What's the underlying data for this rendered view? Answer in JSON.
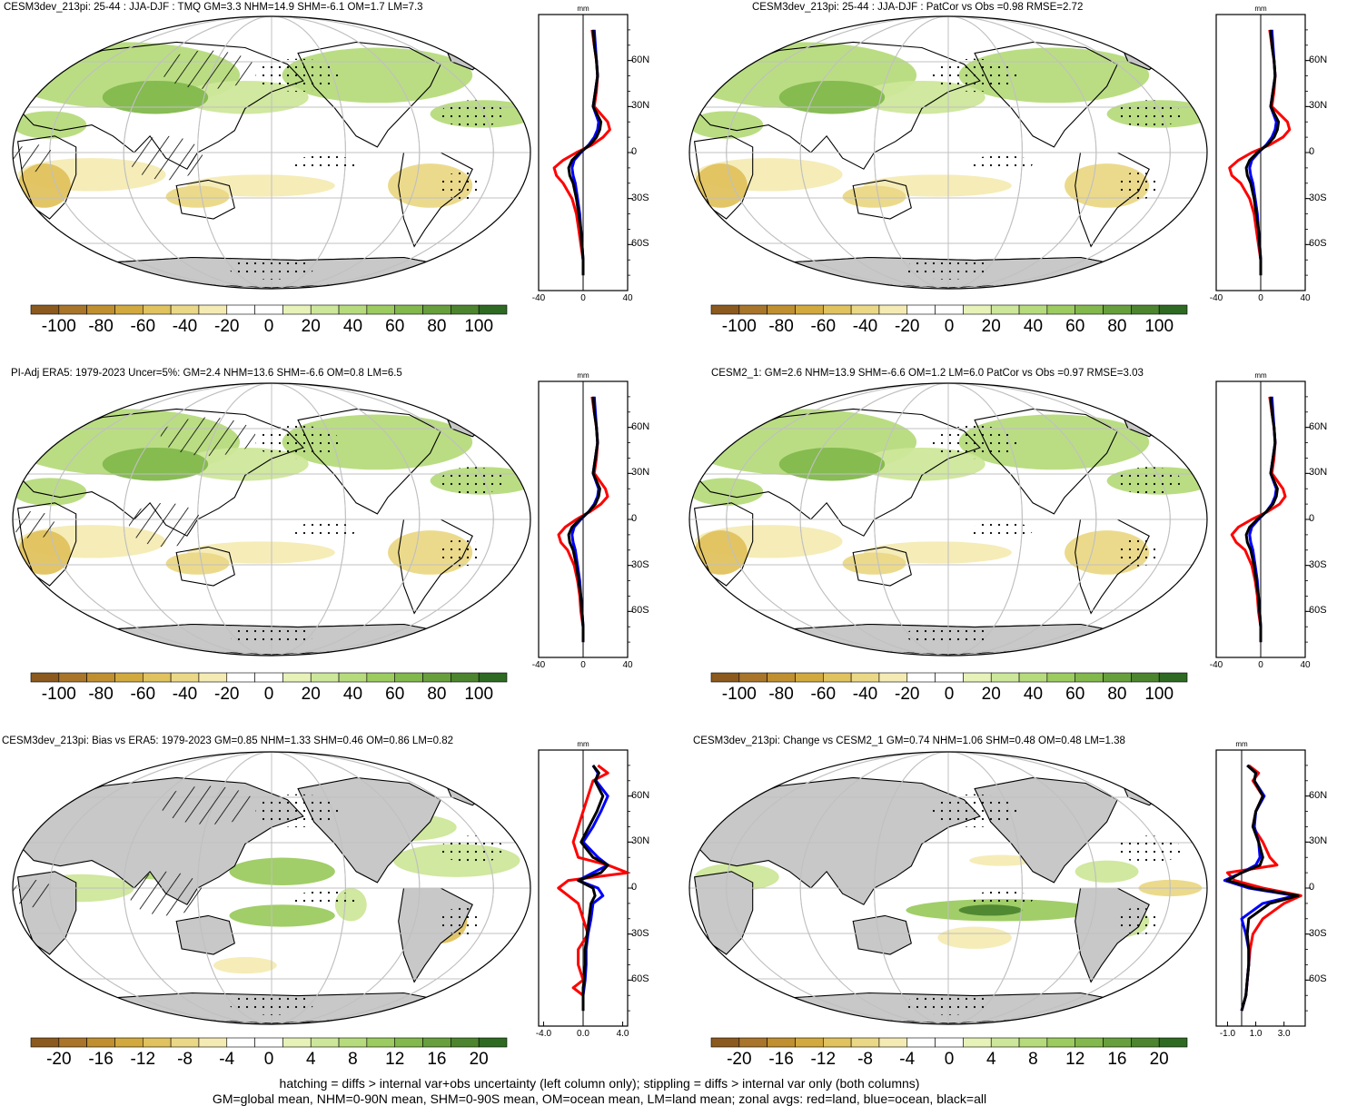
{
  "colors": {
    "land": "#c8c8c8",
    "ocean_bg": "#ffffff",
    "zonal_land": "#ff0000",
    "zonal_ocean": "#0000ff",
    "zonal_all": "#000000",
    "colorbar": [
      "#8c5a1e",
      "#a8752a",
      "#bf8f30",
      "#d2a93e",
      "#e0c25e",
      "#ebd886",
      "#f4ebb4",
      "#ffffff",
      "#ffffff",
      "#e6f2b8",
      "#cde79a",
      "#b6db7c",
      "#9ccb60",
      "#82b84c",
      "#679f3c",
      "#4c852e",
      "#2e6a22"
    ]
  },
  "chart_data": [
    {
      "id": "p1",
      "type": "map",
      "title": "CESM3dev_213pi: 25-44 : JJA-DJF : TMQ GM=3.3 NHM=14.9 SHM=-6.1 OM=1.7 LM=7.3",
      "colorbar_labels": [
        "-100",
        "-80",
        "-60",
        "-40",
        "-20",
        "0",
        "20",
        "40",
        "60",
        "80",
        "100"
      ],
      "zonal": {
        "unit": "mm",
        "lat_ticks": [
          "60N",
          "30N",
          "0",
          "30S",
          "60S"
        ],
        "x_ticks": [
          "-40",
          "0",
          "40"
        ],
        "xlim": [
          -40,
          40
        ],
        "lat": [
          80,
          70,
          60,
          50,
          40,
          30,
          20,
          15,
          10,
          5,
          0,
          -5,
          -10,
          -15,
          -20,
          -30,
          -40,
          -50,
          -60,
          -70,
          -80
        ],
        "land": [
          8,
          10,
          12,
          13,
          12,
          10,
          22,
          24,
          18,
          8,
          -6,
          -18,
          -26,
          -24,
          -18,
          -10,
          -6,
          -4,
          -2,
          0,
          0
        ],
        "ocean": [
          10,
          11,
          12,
          13,
          11,
          9,
          14,
          13,
          10,
          5,
          -2,
          -8,
          -10,
          -9,
          -7,
          -5,
          -3,
          -2,
          -1,
          0,
          0
        ],
        "all": [
          9,
          10,
          12,
          13,
          11,
          9,
          16,
          15,
          12,
          6,
          -3,
          -10,
          -13,
          -12,
          -9,
          -6,
          -4,
          -2,
          -1,
          0,
          0
        ]
      }
    },
    {
      "id": "p2",
      "type": "map",
      "title": "CESM3dev_213pi: 25-44 : JJA-DJF : PatCor vs Obs =0.98 RMSE=2.72",
      "colorbar_labels": [
        "-100",
        "-80",
        "-60",
        "-40",
        "-20",
        "0",
        "20",
        "40",
        "60",
        "80",
        "100"
      ],
      "zonal": {
        "unit": "mm",
        "lat_ticks": [
          "60N",
          "30N",
          "0",
          "30S",
          "60S"
        ],
        "x_ticks": [
          "-40",
          "0",
          "40"
        ],
        "xlim": [
          -40,
          40
        ],
        "lat": [
          80,
          70,
          60,
          50,
          40,
          30,
          20,
          15,
          10,
          5,
          0,
          -5,
          -10,
          -15,
          -20,
          -30,
          -40,
          -50,
          -60,
          -70,
          -80
        ],
        "land": [
          8,
          10,
          12,
          13,
          12,
          10,
          24,
          26,
          20,
          8,
          -8,
          -20,
          -28,
          -26,
          -18,
          -10,
          -6,
          -4,
          -2,
          0,
          0
        ],
        "ocean": [
          10,
          11,
          12,
          13,
          11,
          9,
          14,
          13,
          10,
          5,
          -2,
          -8,
          -10,
          -9,
          -7,
          -5,
          -3,
          -2,
          -1,
          0,
          0
        ],
        "all": [
          9,
          10,
          12,
          13,
          11,
          9,
          16,
          15,
          12,
          6,
          -3,
          -10,
          -13,
          -12,
          -9,
          -6,
          -4,
          -2,
          -1,
          0,
          0
        ]
      }
    },
    {
      "id": "p3",
      "type": "map",
      "title": "PI-Adj ERA5: 1979-2023 Uncer=5%: GM=2.4 NHM=13.6 SHM=-6.6 OM=0.8 LM=6.5",
      "colorbar_labels": [
        "-100",
        "-80",
        "-60",
        "-40",
        "-20",
        "0",
        "20",
        "40",
        "60",
        "80",
        "100"
      ],
      "zonal": {
        "unit": "mm",
        "lat_ticks": [
          "60N",
          "30N",
          "0",
          "30S",
          "60S"
        ],
        "x_ticks": [
          "-40",
          "0",
          "40"
        ],
        "xlim": [
          -40,
          40
        ],
        "lat": [
          80,
          70,
          60,
          50,
          40,
          30,
          20,
          15,
          10,
          5,
          0,
          -5,
          -10,
          -15,
          -20,
          -30,
          -40,
          -50,
          -60,
          -70,
          -80
        ],
        "land": [
          8,
          10,
          12,
          13,
          12,
          10,
          20,
          22,
          16,
          6,
          -6,
          -16,
          -22,
          -20,
          -14,
          -8,
          -5,
          -3,
          -2,
          0,
          0
        ],
        "ocean": [
          10,
          11,
          12,
          13,
          11,
          9,
          14,
          13,
          10,
          5,
          -2,
          -8,
          -10,
          -9,
          -7,
          -5,
          -3,
          -2,
          -1,
          0,
          0
        ],
        "all": [
          9,
          10,
          12,
          13,
          11,
          9,
          15,
          14,
          11,
          5,
          -3,
          -10,
          -13,
          -12,
          -9,
          -6,
          -4,
          -2,
          -1,
          0,
          0
        ]
      }
    },
    {
      "id": "p4",
      "type": "map",
      "title": "CESM2_1: GM=2.6 NHM=13.9 SHM=-6.6 OM=1.2 LM=6.0 PatCor vs Obs =0.97 RMSE=3.03",
      "colorbar_labels": [
        "-100",
        "-80",
        "-60",
        "-40",
        "-20",
        "0",
        "20",
        "40",
        "60",
        "80",
        "100"
      ],
      "zonal": {
        "unit": "mm",
        "lat_ticks": [
          "60N",
          "30N",
          "0",
          "30S",
          "60S"
        ],
        "x_ticks": [
          "-40",
          "0",
          "40"
        ],
        "xlim": [
          -40,
          40
        ],
        "lat": [
          80,
          70,
          60,
          50,
          40,
          30,
          20,
          15,
          10,
          5,
          0,
          -5,
          -10,
          -15,
          -20,
          -30,
          -40,
          -50,
          -60,
          -70,
          -80
        ],
        "land": [
          8,
          10,
          12,
          13,
          12,
          10,
          20,
          22,
          17,
          6,
          -8,
          -20,
          -26,
          -22,
          -14,
          -8,
          -5,
          -3,
          -2,
          0,
          0
        ],
        "ocean": [
          10,
          11,
          12,
          13,
          11,
          9,
          14,
          13,
          10,
          5,
          -2,
          -8,
          -10,
          -9,
          -7,
          -5,
          -3,
          -2,
          -1,
          0,
          0
        ],
        "all": [
          9,
          10,
          12,
          13,
          11,
          9,
          15,
          14,
          11,
          5,
          -3,
          -10,
          -13,
          -12,
          -9,
          -6,
          -4,
          -2,
          -1,
          0,
          0
        ]
      }
    },
    {
      "id": "p5",
      "type": "map",
      "title": "CESM3dev_213pi: Bias vs ERA5: 1979-2023 GM=0.85 NHM=1.33 SHM=0.46 OM=0.86 LM=0.82",
      "colorbar_labels": [
        "-20",
        "-16",
        "-12",
        "-8",
        "-4",
        "0",
        "4",
        "8",
        "12",
        "16",
        "20"
      ],
      "zonal": {
        "unit": "mm",
        "lat_ticks": [
          "60N",
          "30N",
          "0",
          "30S",
          "60S"
        ],
        "x_ticks": [
          "-4.0",
          "0.0",
          "4.0"
        ],
        "xlim": [
          -4.5,
          4.5
        ],
        "lat": [
          80,
          75,
          70,
          60,
          50,
          40,
          30,
          20,
          15,
          10,
          5,
          0,
          -5,
          -10,
          -20,
          -30,
          -40,
          -50,
          -60,
          -65,
          -70,
          -80
        ],
        "land": [
          1.5,
          2.5,
          1.0,
          0.5,
          0.0,
          -0.5,
          -1.0,
          -0.5,
          2.5,
          4.5,
          -1.5,
          -2.5,
          -1.5,
          -0.5,
          0.0,
          0.5,
          -0.5,
          -0.5,
          0.0,
          -1.0,
          0.0,
          0.0
        ],
        "ocean": [
          1.0,
          1.5,
          1.3,
          2.5,
          1.8,
          1.0,
          0.0,
          1.5,
          2.5,
          1.0,
          -0.5,
          1.5,
          2.0,
          1.0,
          0.8,
          0.5,
          0.3,
          0.3,
          0.2,
          0.1,
          0.0,
          0.0
        ],
        "all": [
          1.0,
          1.6,
          1.2,
          2.0,
          1.4,
          0.6,
          -0.2,
          1.0,
          2.5,
          1.8,
          -0.5,
          1.0,
          1.2,
          0.8,
          0.6,
          0.4,
          0.2,
          0.2,
          0.1,
          0.0,
          0.0,
          0.0
        ]
      }
    },
    {
      "id": "p6",
      "type": "map",
      "title": "CESM3dev_213pi: Change vs CESM2_1 GM=0.74 NHM=1.06 SHM=0.48 OM=0.48 LM=1.38",
      "colorbar_labels": [
        "-20",
        "-16",
        "-12",
        "-8",
        "-4",
        "0",
        "4",
        "8",
        "12",
        "16",
        "20"
      ],
      "zonal": {
        "unit": "mm",
        "lat_ticks": [
          "60N",
          "30N",
          "0",
          "30S",
          "60S"
        ],
        "x_ticks": [
          "-1.0",
          "1.0",
          "3.0"
        ],
        "xlim": [
          -1.8,
          4.5
        ],
        "lat": [
          80,
          75,
          70,
          60,
          50,
          40,
          30,
          20,
          15,
          10,
          5,
          0,
          -5,
          -10,
          -20,
          -30,
          -40,
          -50,
          -60,
          -70,
          -80
        ],
        "land": [
          0.5,
          1.2,
          0.8,
          1.5,
          1.0,
          0.8,
          1.5,
          2.0,
          2.5,
          -1.0,
          -0.5,
          1.5,
          4.2,
          3.0,
          1.5,
          0.8,
          0.6,
          0.5,
          0.4,
          0.3,
          0.0
        ],
        "ocean": [
          0.4,
          1.0,
          0.9,
          1.6,
          1.0,
          0.9,
          1.2,
          1.3,
          1.0,
          0.0,
          -1.2,
          0.5,
          3.8,
          1.5,
          0.0,
          0.3,
          0.5,
          0.5,
          0.4,
          0.3,
          0.0
        ],
        "all": [
          0.4,
          1.0,
          0.9,
          1.5,
          1.0,
          0.8,
          1.2,
          1.5,
          1.3,
          0.0,
          -1.0,
          0.8,
          4.0,
          2.0,
          0.5,
          0.4,
          0.5,
          0.5,
          0.4,
          0.3,
          0.0
        ]
      }
    }
  ],
  "footer": {
    "line1": "hatching = diffs > internal var+obs uncertainty (left column only); stippling = diffs > internal var only (both columns)",
    "line2": "GM=global mean, NHM=0-90N mean, SHM=0-90S mean, OM=ocean mean, LM=land mean; zonal avgs: red=land, blue=ocean, black=all"
  }
}
